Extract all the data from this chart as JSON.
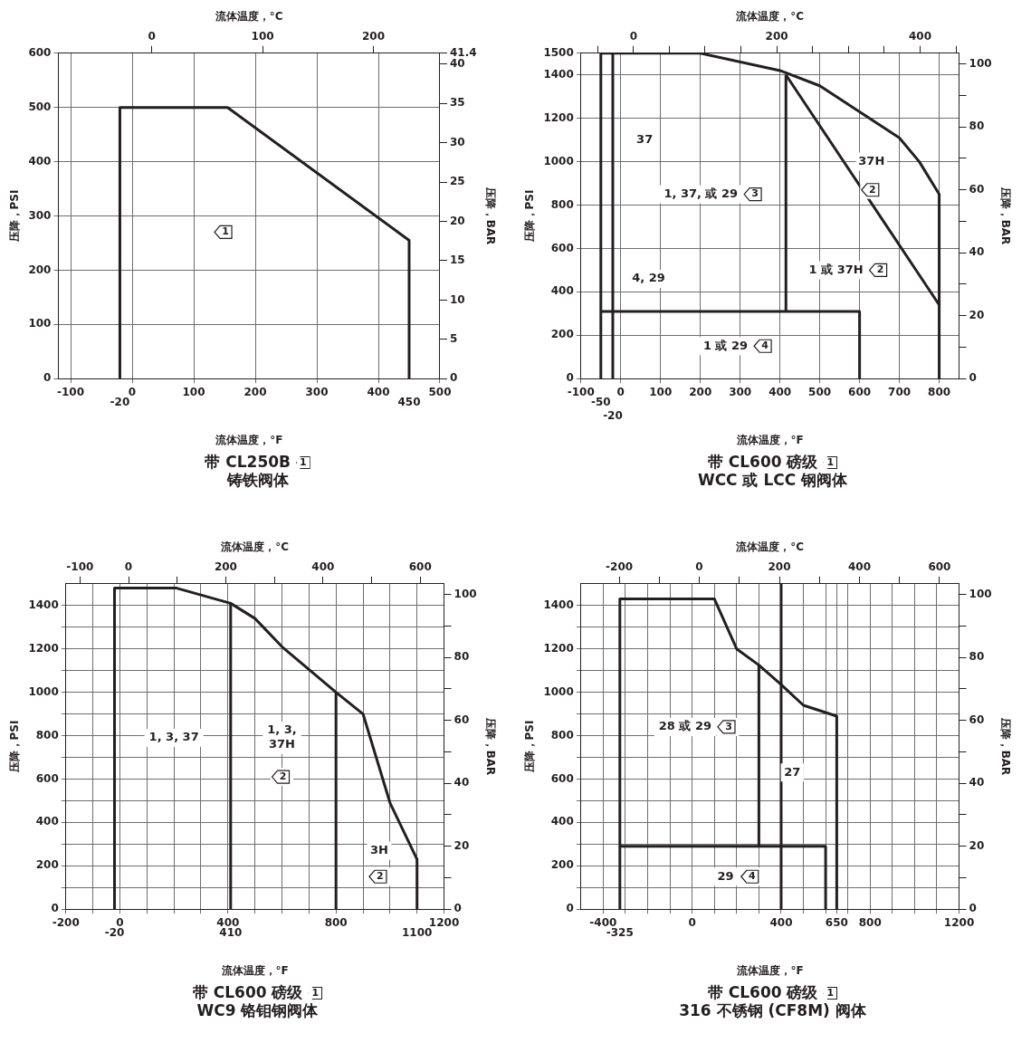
{
  "chart_data": [
    {
      "type": "line",
      "title": "带 CL250B",
      "subtitle": "铸铁阀体",
      "xlabel": "流体温度，°F",
      "x2label": "流体温度，°C",
      "ylabel": "压降，PSI",
      "y2label": "压降，BAR",
      "xlim": [
        -120,
        500
      ],
      "xticks": [
        -100,
        0,
        100,
        200,
        300,
        400,
        500
      ],
      "x2lim": [
        -84.4,
        260
      ],
      "x2ticks": [
        0,
        100,
        200
      ],
      "ylim": [
        0,
        600
      ],
      "yticks": [
        0,
        100,
        200,
        300,
        400,
        500,
        600
      ],
      "y2lim": [
        0,
        41.4
      ],
      "y2ticks": [
        0,
        5,
        10,
        15,
        20,
        25,
        30,
        35,
        40,
        41.4
      ],
      "grid": true,
      "legend": false,
      "series": [
        {
          "color": "#231f20",
          "x": [
            -20,
            -20,
            155,
            450,
            450
          ],
          "values": [
            0,
            500,
            500,
            255,
            0
          ]
        }
      ],
      "annotations": [
        "1",
        {
          "text": "1",
          "x": 150,
          "y": 270
        },
        {
          "text": "-20",
          "x": -20,
          "y": 0
        },
        {
          "text": "450",
          "x": 450,
          "y": 0
        }
      ]
    },
    {
      "type": "line",
      "title": "带 CL600 磅级",
      "subtitle": "WCC 或 LCC 钢阀体",
      "xlabel": "流体温度，°F",
      "x2label": "流体温度，°C",
      "ylabel": "压降，PSI",
      "y2label": "压降，BAR",
      "xlim": [
        -100,
        850
      ],
      "xticks": [
        -100,
        0,
        100,
        200,
        300,
        400,
        500,
        600,
        700,
        800
      ],
      "x2lim": [
        -73.3,
        454.4
      ],
      "x2ticks": [
        {
          "value": -50,
          "label": null
        },
        0,
        {
          "value": 50,
          "label": null
        },
        {
          "value": 100,
          "label": null
        },
        {
          "value": 150,
          "label": null
        },
        200,
        {
          "value": 250,
          "label": null
        },
        {
          "value": 300,
          "label": null
        },
        {
          "value": 350,
          "label": null
        },
        400,
        {
          "value": 450,
          "label": null
        }
      ],
      "ylim": [
        0,
        1500
      ],
      "yticks": [
        0,
        200,
        400,
        600,
        800,
        1000,
        1200,
        1400,
        1500
      ],
      "y2lim": [
        0,
        103.4
      ],
      "y2ticks": [
        0,
        {
          "value": 10,
          "label": null
        },
        20,
        {
          "value": 30,
          "label": null
        },
        40,
        {
          "value": 50,
          "label": null
        },
        60,
        {
          "value": 70,
          "label": null
        },
        80,
        {
          "value": 90,
          "label": null
        },
        100
      ],
      "grid": true,
      "legend": false,
      "series": [
        {
          "color": "#231f20",
          "x": [
            -50,
            -50,
            200,
            400,
            500,
            600,
            700,
            750,
            800,
            800
          ],
          "values": [
            0,
            1500,
            1500,
            1420,
            1350,
            1230,
            1110,
            1000,
            850,
            0
          ]
        },
        {
          "color": "#231f20",
          "x": [
            -20,
            -20
          ],
          "values": [
            0,
            1500
          ]
        },
        {
          "color": "#231f20",
          "x": [
            415,
            415
          ],
          "values": [
            310,
            1400
          ]
        },
        {
          "color": "#231f20",
          "x": [
            415,
            800
          ],
          "values": [
            1400,
            340
          ]
        },
        {
          "color": "#231f20",
          "x": [
            -50,
            600,
            600
          ],
          "values": [
            310,
            310,
            0
          ]
        }
      ],
      "annotations": [
        "1",
        {
          "text": "37",
          "x": 60,
          "y": 1100
        },
        "1, 37, 或 29",
        {
          "text": "3",
          "x": 335,
          "y": 850
        },
        {
          "text": "37H",
          "x": 630,
          "y": 1000
        },
        {
          "text": "2",
          "x": 630,
          "y": 870
        },
        "1 或 37H",
        {
          "text": "2",
          "x": 650,
          "y": 500
        },
        {
          "text": "4, 29",
          "x": 70,
          "y": 460
        },
        "1 或 29",
        {
          "text": "4",
          "x": 360,
          "y": 150
        },
        {
          "text": "-50",
          "x": -50,
          "y": 0
        },
        {
          "text": "-20",
          "x": -20,
          "y": 0
        }
      ]
    },
    {
      "type": "line",
      "title": "带 CL600 磅级",
      "subtitle": "WC9 铬钼钢阀体",
      "xlabel": "流体温度，°F",
      "x2label": "流体温度，°C",
      "ylabel": "压降，PSI",
      "y2label": "压降，BAR",
      "xlim": [
        -200,
        1200
      ],
      "xticks": [
        -200,
        {
          "value": -100,
          "label": null
        },
        0,
        {
          "value": 100,
          "label": null
        },
        {
          "value": 200,
          "label": null
        },
        {
          "value": 300,
          "label": null
        },
        400,
        {
          "value": 500,
          "label": null
        },
        {
          "value": 600,
          "label": null
        },
        {
          "value": 700,
          "label": null
        },
        800,
        {
          "value": 900,
          "label": null
        },
        {
          "value": 1000,
          "label": null
        },
        {
          "value": 1100,
          "label": null
        },
        1200
      ],
      "x2lim": [
        -128.9,
        648.9
      ],
      "x2ticks": [
        -100,
        0,
        {
          "value": 100,
          "label": null
        },
        200,
        {
          "value": 300,
          "label": null
        },
        400,
        {
          "value": 500,
          "label": null
        },
        600
      ],
      "ylim": [
        0,
        1500
      ],
      "yticks": [
        0,
        {
          "value": 100,
          "label": null
        },
        200,
        {
          "value": 300,
          "label": null
        },
        400,
        {
          "value": 500,
          "label": null
        },
        600,
        {
          "value": 700,
          "label": null
        },
        800,
        {
          "value": 900,
          "label": null
        },
        1000,
        {
          "value": 1100,
          "label": null
        },
        1200,
        {
          "value": 1300,
          "label": null
        },
        1400
      ],
      "y2lim": [
        0,
        103.4
      ],
      "y2ticks": [
        0,
        {
          "value": 10,
          "label": null
        },
        20,
        {
          "value": 30,
          "label": null
        },
        40,
        {
          "value": 50,
          "label": null
        },
        60,
        {
          "value": 70,
          "label": null
        },
        80,
        {
          "value": 90,
          "label": null
        },
        100
      ],
      "grid": true,
      "legend": false,
      "series": [
        {
          "color": "#231f20",
          "x": [
            -20,
            -20,
            210,
            410,
            500,
            600,
            800,
            900,
            1000,
            1100,
            1100
          ],
          "values": [
            0,
            1480,
            1480,
            1410,
            1340,
            1210,
            1000,
            900,
            490,
            230,
            0
          ]
        },
        {
          "color": "#231f20",
          "x": [
            410,
            410
          ],
          "values": [
            0,
            1410
          ]
        },
        {
          "color": "#231f20",
          "x": [
            800,
            800
          ],
          "values": [
            0,
            1000
          ]
        }
      ],
      "annotations": [
        "1",
        "1, 3, 37",
        {
          "text": "1, 3,\n37H",
          "x": 600,
          "y": 790
        },
        {
          "text": "2",
          "x": 600,
          "y": 610
        },
        {
          "text": "3H",
          "x": 960,
          "y": 270
        },
        {
          "text": "2",
          "x": 960,
          "y": 150
        },
        {
          "text": "-20",
          "x": -20,
          "y": 0
        },
        {
          "text": "410",
          "x": 410,
          "y": 0
        },
        {
          "text": "1100",
          "x": 1100,
          "y": 0
        }
      ]
    },
    {
      "type": "line",
      "title": "带 CL600 磅级",
      "subtitle": "316 不锈钢 (CF8M) 阀体",
      "xlabel": "流体温度，°F",
      "x2label": "流体温度，°C",
      "ylabel": "压降，PSI",
      "y2label": "压降，BAR",
      "xlim": [
        -500,
        1200
      ],
      "xticks": [
        -400,
        {
          "value": -300,
          "label": null
        },
        {
          "value": -200,
          "label": null
        },
        {
          "value": -100,
          "label": null
        },
        0,
        {
          "value": 100,
          "label": null
        },
        {
          "value": 200,
          "label": null
        },
        {
          "value": 300,
          "label": null
        },
        400,
        {
          "value": 500,
          "label": null
        },
        {
          "value": 600,
          "label": null
        },
        650,
        {
          "value": 700,
          "label": null
        },
        800,
        {
          "value": 900,
          "label": null
        },
        {
          "value": 1000,
          "label": null
        },
        {
          "value": 1100,
          "label": null
        },
        1200
      ],
      "x2lim": [
        -295.6,
        648.9
      ],
      "x2ticks": [
        -200,
        {
          "value": -100,
          "label": null
        },
        0,
        {
          "value": 100,
          "label": null
        },
        200,
        {
          "value": 300,
          "label": null
        },
        400,
        {
          "value": 500,
          "label": null
        },
        600
      ],
      "ylim": [
        0,
        1500
      ],
      "yticks": [
        0,
        {
          "value": 100,
          "label": null
        },
        200,
        {
          "value": 300,
          "label": null
        },
        400,
        {
          "value": 500,
          "label": null
        },
        600,
        {
          "value": 700,
          "label": null
        },
        800,
        {
          "value": 900,
          "label": null
        },
        1000,
        {
          "value": 1100,
          "label": null
        },
        1200,
        {
          "value": 1300,
          "label": null
        },
        1400
      ],
      "y2lim": [
        0,
        103.4
      ],
      "y2ticks": [
        0,
        {
          "value": 10,
          "label": null
        },
        20,
        {
          "value": 30,
          "label": null
        },
        40,
        {
          "value": 50,
          "label": null
        },
        60,
        {
          "value": 70,
          "label": null
        },
        80,
        {
          "value": 90,
          "label": null
        },
        100
      ],
      "grid": true,
      "legend": false,
      "series": [
        {
          "color": "#231f20",
          "x": [
            -325,
            -325,
            100,
            200,
            300,
            400,
            500,
            650,
            650
          ],
          "values": [
            0,
            1430,
            1430,
            1200,
            1125,
            1035,
            940,
            890,
            0
          ]
        },
        {
          "color": "#231f20",
          "x": [
            300,
            300
          ],
          "values": [
            290,
            1125
          ]
        },
        {
          "color": "#231f20",
          "x": [
            -325,
            600,
            600
          ],
          "values": [
            290,
            290,
            0
          ]
        },
        {
          "color": "#231f20",
          "x": [
            400,
            400
          ],
          "values": [
            0,
            1500
          ]
        }
      ],
      "annotations": [
        "1",
        "28 或 29",
        {
          "text": "3",
          "x": 160,
          "y": 840
        },
        {
          "text": "27",
          "x": 450,
          "y": 630
        },
        {
          "text": "29",
          "x": 150,
          "y": 150
        },
        {
          "text": "4",
          "x": 265,
          "y": 150
        },
        {
          "text": "-325",
          "x": -325,
          "y": 0
        }
      ]
    }
  ]
}
